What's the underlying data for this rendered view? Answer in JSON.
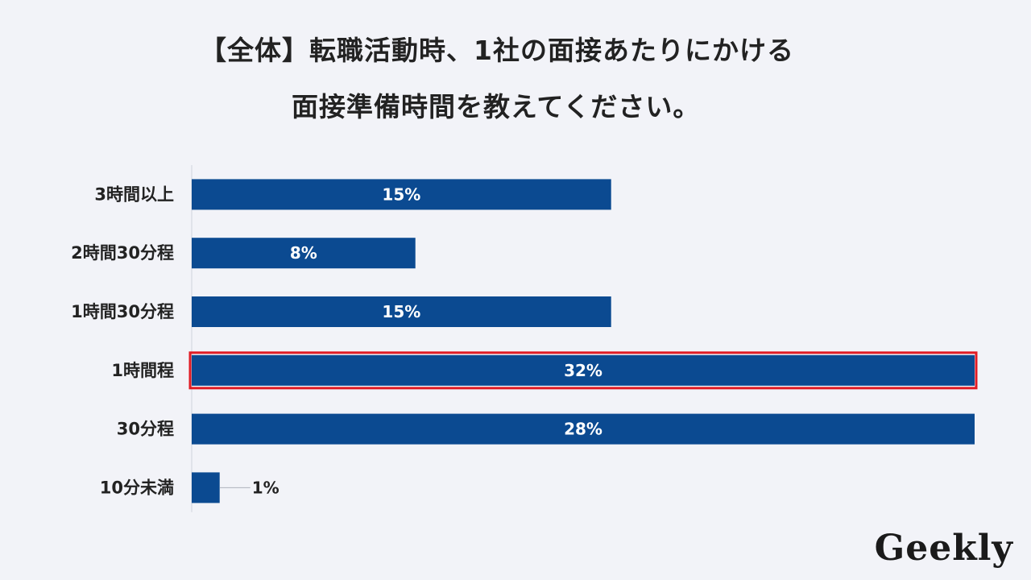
{
  "title_lines": [
    "【全体】転職活動時、1社の面接あたりにかける",
    "面接準備時間を教えてください。"
  ],
  "logo": "Geekly",
  "colors": {
    "bar": "#0b4a91",
    "highlight": "#e01b24",
    "axis": "#cfd3dc",
    "background": "#f2f3f8"
  },
  "chart_data": {
    "type": "bar",
    "orientation": "horizontal",
    "categories": [
      "3時間以上",
      "2時間30分程",
      "1時間30分程",
      "1時間程",
      "30分程",
      "10分未満"
    ],
    "values": [
      15,
      8,
      15,
      32,
      28,
      1
    ],
    "value_labels": [
      "15%",
      "8%",
      "15%",
      "32%",
      "28%",
      "1%"
    ],
    "highlighted": "1時間程",
    "xlim": [
      0,
      28
    ],
    "grid": false,
    "legend": "none"
  }
}
